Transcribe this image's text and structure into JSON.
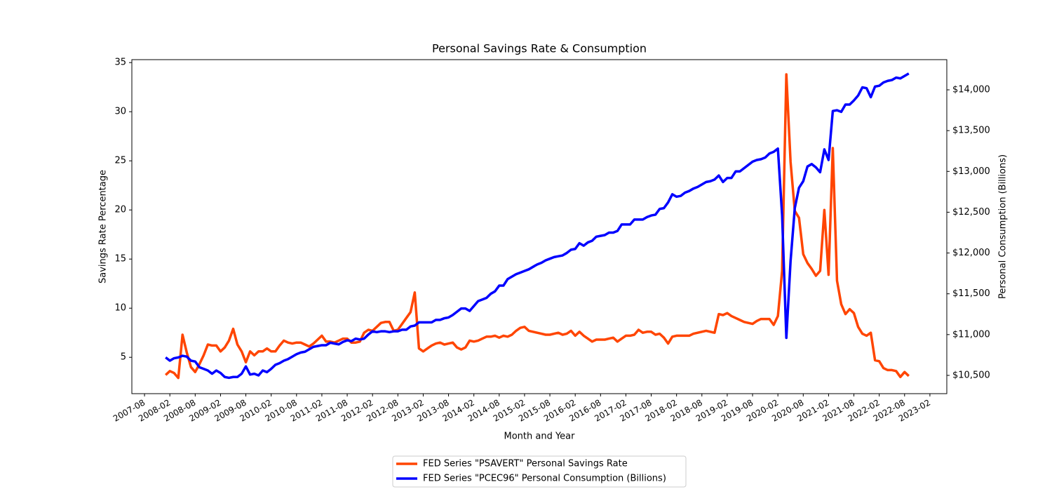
{
  "chart_data": {
    "type": "line",
    "title": "Personal Savings Rate & Consumption",
    "xlabel": "Month and Year",
    "ylabel": "Savings Rate Percentage",
    "y2label": "Personal Consumption (Billions)",
    "legend": "below",
    "x": [
      "2008-01",
      "2008-02",
      "2008-03",
      "2008-04",
      "2008-05",
      "2008-06",
      "2008-07",
      "2008-08",
      "2008-09",
      "2008-10",
      "2008-11",
      "2008-12",
      "2009-01",
      "2009-02",
      "2009-03",
      "2009-04",
      "2009-05",
      "2009-06",
      "2009-07",
      "2009-08",
      "2009-09",
      "2009-10",
      "2009-11",
      "2009-12",
      "2010-01",
      "2010-02",
      "2010-03",
      "2010-04",
      "2010-05",
      "2010-06",
      "2010-07",
      "2010-08",
      "2010-09",
      "2010-10",
      "2010-11",
      "2010-12",
      "2011-01",
      "2011-02",
      "2011-03",
      "2011-04",
      "2011-05",
      "2011-06",
      "2011-07",
      "2011-08",
      "2011-09",
      "2011-10",
      "2011-11",
      "2011-12",
      "2012-01",
      "2012-02",
      "2012-03",
      "2012-04",
      "2012-05",
      "2012-06",
      "2012-07",
      "2012-08",
      "2012-09",
      "2012-10",
      "2012-11",
      "2012-12",
      "2013-01",
      "2013-02",
      "2013-03",
      "2013-04",
      "2013-05",
      "2013-06",
      "2013-07",
      "2013-08",
      "2013-09",
      "2013-10",
      "2013-11",
      "2013-12",
      "2014-01",
      "2014-02",
      "2014-03",
      "2014-04",
      "2014-05",
      "2014-06",
      "2014-07",
      "2014-08",
      "2014-09",
      "2014-10",
      "2014-11",
      "2014-12",
      "2015-01",
      "2015-02",
      "2015-03",
      "2015-04",
      "2015-05",
      "2015-06",
      "2015-07",
      "2015-08",
      "2015-09",
      "2015-10",
      "2015-11",
      "2015-12",
      "2016-01",
      "2016-02",
      "2016-03",
      "2016-04",
      "2016-05",
      "2016-06",
      "2016-07",
      "2016-08",
      "2016-09",
      "2016-10",
      "2016-11",
      "2016-12",
      "2017-01",
      "2017-02",
      "2017-03",
      "2017-04",
      "2017-05",
      "2017-06",
      "2017-07",
      "2017-08",
      "2017-09",
      "2017-10",
      "2017-11",
      "2017-12",
      "2018-01",
      "2018-02",
      "2018-03",
      "2018-04",
      "2018-05",
      "2018-06",
      "2018-07",
      "2018-08",
      "2018-09",
      "2018-10",
      "2018-11",
      "2018-12",
      "2019-01",
      "2019-02",
      "2019-03",
      "2019-04",
      "2019-05",
      "2019-06",
      "2019-07",
      "2019-08",
      "2019-09",
      "2019-10",
      "2019-11",
      "2019-12",
      "2020-01",
      "2020-02",
      "2020-03",
      "2020-04",
      "2020-05",
      "2020-06",
      "2020-07",
      "2020-08",
      "2020-09",
      "2020-10",
      "2020-11",
      "2020-12",
      "2021-01",
      "2021-02",
      "2021-03",
      "2021-04",
      "2021-05",
      "2021-06",
      "2021-07",
      "2021-08",
      "2021-09",
      "2021-10",
      "2021-11",
      "2021-12",
      "2022-01",
      "2022-02",
      "2022-03",
      "2022-04",
      "2022-05",
      "2022-06",
      "2022-07",
      "2022-08",
      "2022-09"
    ],
    "series": [
      {
        "name": "FED Series \"PSAVERT\" Personal Savings Rate",
        "color": "#ff4500",
        "axis": "y",
        "values": [
          3.2,
          3.6,
          3.4,
          2.9,
          7.3,
          5.5,
          4.0,
          3.5,
          4.3,
          5.2,
          6.3,
          6.2,
          6.2,
          5.6,
          6.0,
          6.7,
          7.9,
          6.3,
          5.6,
          4.5,
          5.6,
          5.2,
          5.6,
          5.6,
          5.9,
          5.6,
          5.6,
          6.2,
          6.7,
          6.5,
          6.4,
          6.5,
          6.5,
          6.3,
          6.1,
          6.4,
          6.8,
          7.2,
          6.6,
          6.6,
          6.5,
          6.7,
          6.9,
          6.9,
          6.5,
          6.5,
          6.6,
          7.5,
          7.8,
          7.7,
          8.1,
          8.5,
          8.6,
          8.6,
          7.7,
          7.8,
          8.4,
          9.0,
          9.6,
          11.6,
          5.9,
          5.6,
          5.9,
          6.2,
          6.4,
          6.5,
          6.3,
          6.4,
          6.5,
          6.0,
          5.8,
          6.0,
          6.7,
          6.6,
          6.7,
          6.9,
          7.1,
          7.1,
          7.2,
          7.0,
          7.2,
          7.1,
          7.3,
          7.7,
          8.0,
          8.1,
          7.7,
          7.6,
          7.5,
          7.4,
          7.3,
          7.3,
          7.4,
          7.5,
          7.3,
          7.4,
          7.7,
          7.2,
          7.6,
          7.2,
          6.9,
          6.6,
          6.8,
          6.8,
          6.8,
          6.9,
          7.0,
          6.6,
          6.9,
          7.2,
          7.2,
          7.3,
          7.8,
          7.5,
          7.6,
          7.6,
          7.3,
          7.4,
          7.0,
          6.4,
          7.1,
          7.2,
          7.2,
          7.2,
          7.2,
          7.4,
          7.5,
          7.6,
          7.7,
          7.6,
          7.5,
          9.4,
          9.3,
          9.5,
          9.2,
          9.0,
          8.8,
          8.6,
          8.5,
          8.4,
          8.7,
          8.9,
          8.9,
          8.9,
          8.3,
          9.2,
          13.8,
          33.8,
          24.9,
          19.9,
          19.2,
          15.5,
          14.6,
          14.0,
          13.3,
          13.8,
          20.0,
          13.4,
          26.3,
          12.8,
          10.4,
          9.4,
          9.9,
          9.5,
          8.1,
          7.4,
          7.2,
          7.5,
          4.7,
          4.6,
          3.9,
          3.7,
          3.7,
          3.6,
          3.0,
          3.5,
          3.1
        ]
      },
      {
        "name": "FED Series \"PCEC96\" Personal Consumption (Billions)",
        "color": "#0000ff",
        "axis": "y2",
        "values": [
          10720,
          10680,
          10710,
          10720,
          10740,
          10730,
          10680,
          10670,
          10600,
          10580,
          10560,
          10520,
          10560,
          10530,
          10480,
          10470,
          10480,
          10480,
          10520,
          10610,
          10510,
          10520,
          10500,
          10560,
          10540,
          10580,
          10630,
          10650,
          10680,
          10700,
          10730,
          10760,
          10780,
          10790,
          10820,
          10850,
          10860,
          10870,
          10870,
          10900,
          10890,
          10880,
          10910,
          10930,
          10920,
          10950,
          10940,
          10950,
          11000,
          11040,
          11030,
          11040,
          11040,
          11030,
          11040,
          11040,
          11060,
          11060,
          11100,
          11110,
          11150,
          11150,
          11150,
          11150,
          11180,
          11180,
          11200,
          11210,
          11240,
          11280,
          11320,
          11320,
          11290,
          11350,
          11410,
          11430,
          11450,
          11500,
          11530,
          11600,
          11600,
          11680,
          11710,
          11740,
          11760,
          11780,
          11800,
          11830,
          11860,
          11880,
          11910,
          11930,
          11950,
          11960,
          11970,
          12000,
          12040,
          12050,
          12120,
          12090,
          12130,
          12150,
          12200,
          12210,
          12220,
          12250,
          12250,
          12270,
          12350,
          12350,
          12350,
          12410,
          12410,
          12410,
          12440,
          12460,
          12470,
          12540,
          12550,
          12620,
          12720,
          12690,
          12700,
          12740,
          12760,
          12790,
          12810,
          12840,
          12870,
          12880,
          12900,
          12950,
          12870,
          12920,
          12920,
          13000,
          13000,
          13040,
          13080,
          13120,
          13140,
          13150,
          13170,
          13220,
          13240,
          13280,
          12460,
          10960,
          11900,
          12550,
          12800,
          12880,
          13060,
          13090,
          13050,
          12990,
          13270,
          13140,
          13740,
          13750,
          13730,
          13820,
          13820,
          13870,
          13930,
          14030,
          14020,
          13910,
          14040,
          14050,
          14090,
          14110,
          14120,
          14150,
          14140,
          14170,
          14200
        ]
      }
    ],
    "xlim": [
      "2007-05",
      "2023-06"
    ],
    "xticks": [
      "2007-08",
      "2008-02",
      "2008-08",
      "2009-02",
      "2009-08",
      "2010-02",
      "2010-08",
      "2011-02",
      "2011-08",
      "2012-02",
      "2012-08",
      "2013-02",
      "2013-08",
      "2014-02",
      "2014-08",
      "2015-02",
      "2015-08",
      "2016-02",
      "2016-08",
      "2017-02",
      "2017-08",
      "2018-02",
      "2018-08",
      "2019-02",
      "2019-08",
      "2020-02",
      "2020-08",
      "2021-02",
      "2021-08",
      "2022-02",
      "2022-08",
      "2023-02"
    ],
    "ylim": [
      1.3,
      35.3
    ],
    "yticks": [
      5,
      10,
      15,
      20,
      25,
      30,
      35
    ],
    "y2lim": [
      10276,
      14370
    ],
    "y2ticks": [
      {
        "value": 10500,
        "label": "$10,500"
      },
      {
        "value": 11000,
        "label": "$11,000"
      },
      {
        "value": 11500,
        "label": "$11,500"
      },
      {
        "value": 12000,
        "label": "$12,000"
      },
      {
        "value": 12500,
        "label": "$12,500"
      },
      {
        "value": 13000,
        "label": "$13,000"
      },
      {
        "value": 13500,
        "label": "$13,500"
      },
      {
        "value": 14000,
        "label": "$14,000"
      }
    ]
  }
}
